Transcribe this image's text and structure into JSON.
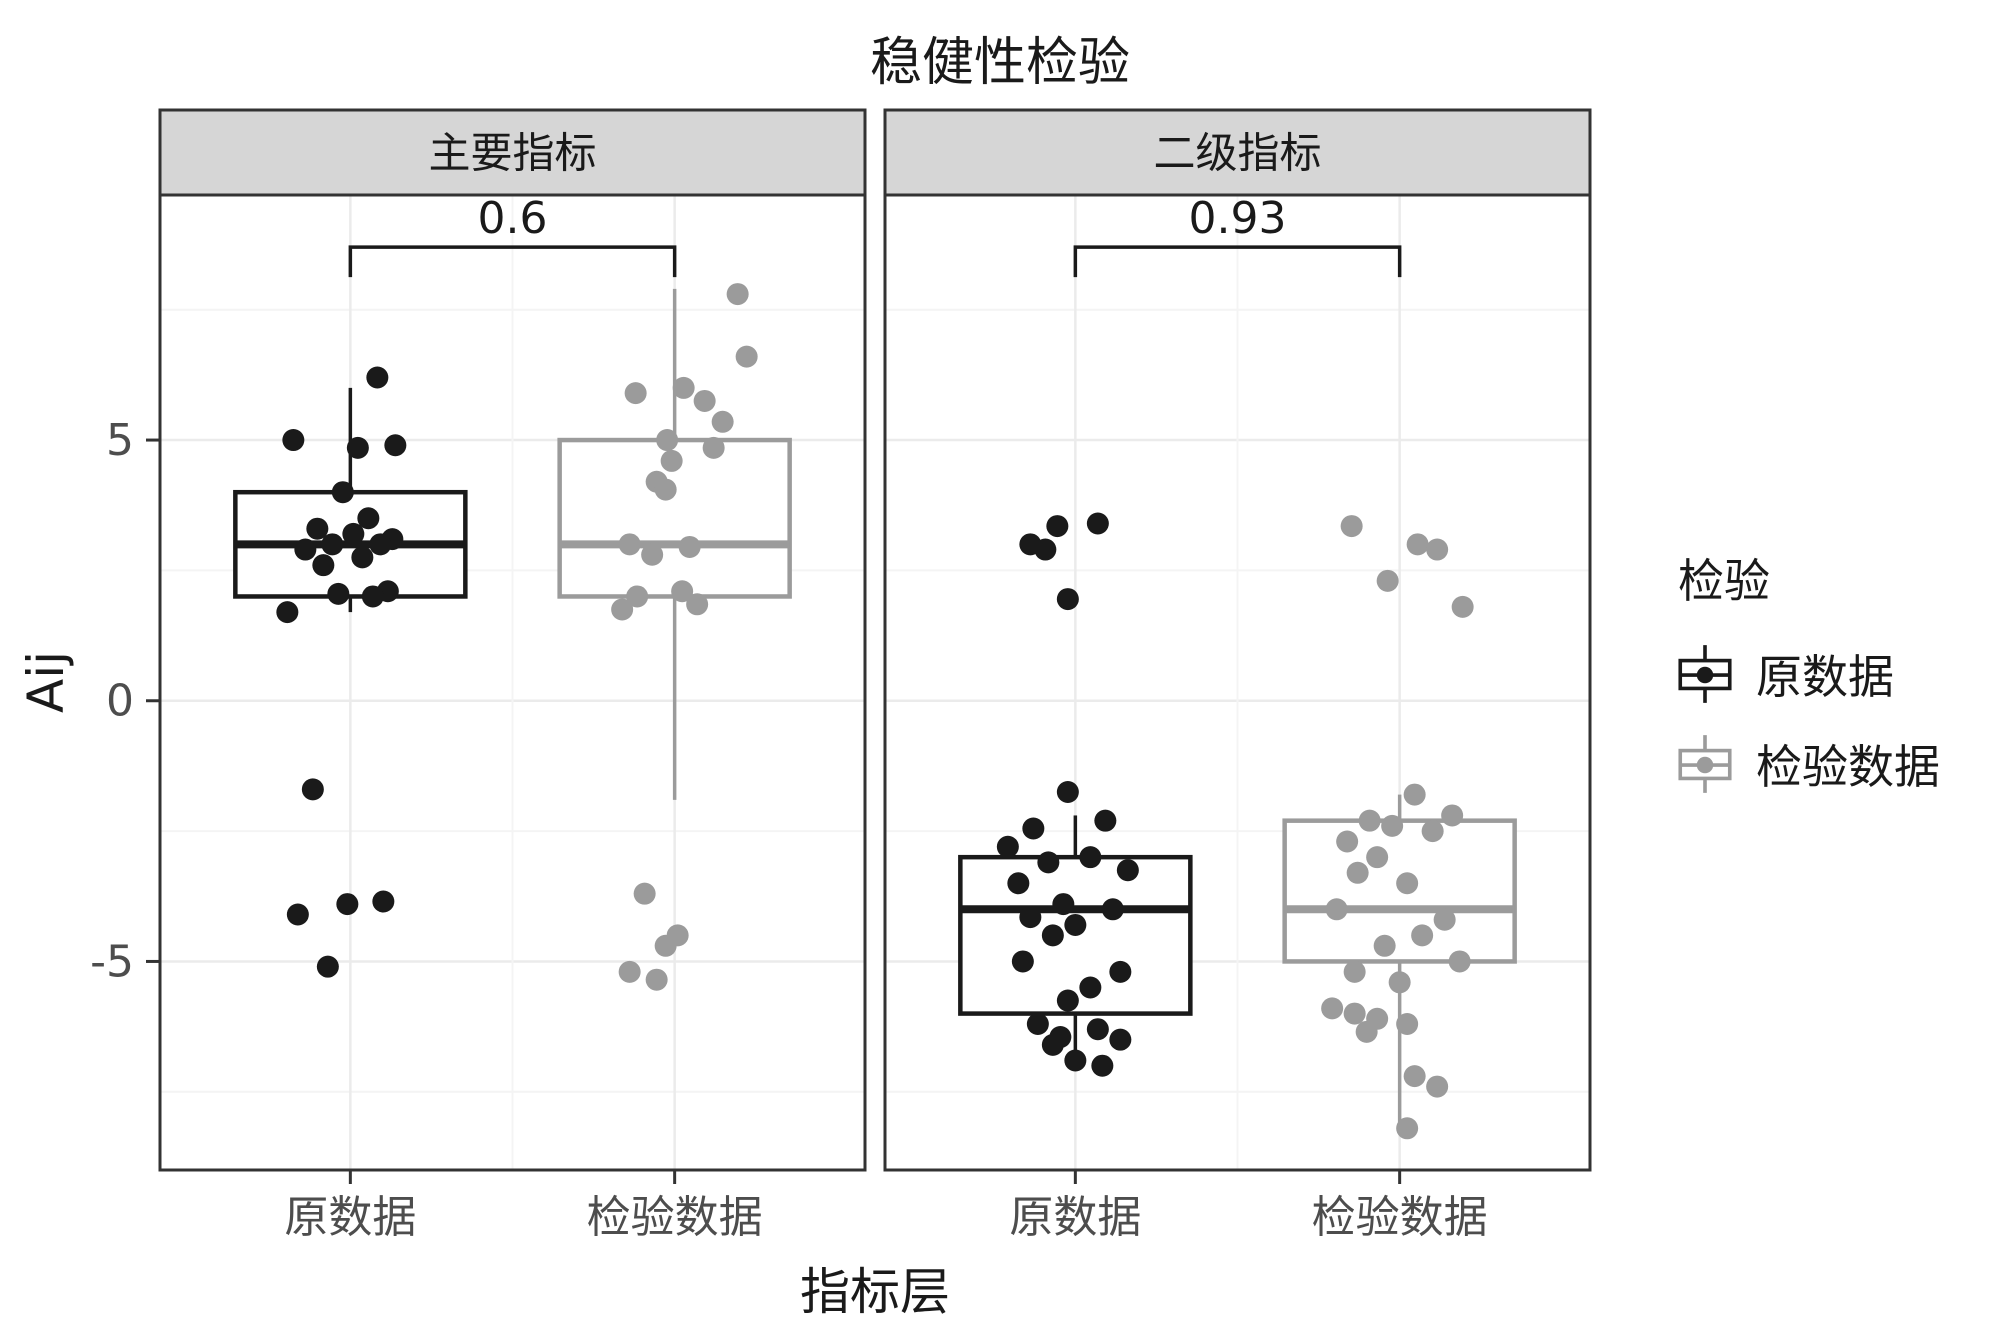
{
  "colors": {
    "black_series": "#1a1a1a",
    "gray_series": "#9b9b9b",
    "panel_border": "#333333",
    "strip_fill": "#d6d6d6",
    "grid_major": "#ebebeb",
    "grid_minor": "#f4f4f4",
    "tick_text": "#4d4d4d",
    "background": "#ffffff"
  },
  "legend": {
    "title": "检验",
    "items": [
      {
        "label": "原数据",
        "color": "#1a1a1a"
      },
      {
        "label": "检验数据",
        "color": "#9b9b9b"
      }
    ]
  },
  "chart_data": {
    "type": "boxplot",
    "overlay": "jitter-points",
    "title": "稳健性检验",
    "xlabel": "指标层",
    "ylabel": "Aij",
    "ylim": [
      -9,
      9.7
    ],
    "y_ticks": [
      5,
      0,
      -5
    ],
    "y_minor": [
      7.5,
      2.5,
      -2.5,
      -7.5
    ],
    "grid": true,
    "legend_position": "right",
    "facets": [
      {
        "label": "主要指标",
        "p_label": "0.6",
        "bracket_y": 8.7,
        "groups": [
          {
            "name": "原数据",
            "color": "#1a1a1a",
            "box": {
              "lo": 1.7,
              "q1": 2.0,
              "median": 3.0,
              "q3": 4.0,
              "hi": 6.0
            },
            "points": [
              [
                0.18,
                6.2
              ],
              [
                -0.38,
                5.0
              ],
              [
                0.3,
                4.9
              ],
              [
                0.05,
                4.85
              ],
              [
                -0.05,
                4.0
              ],
              [
                0.12,
                3.5
              ],
              [
                -0.22,
                3.3
              ],
              [
                0.02,
                3.2
              ],
              [
                0.28,
                3.1
              ],
              [
                -0.12,
                3.0
              ],
              [
                0.2,
                3.0
              ],
              [
                -0.3,
                2.9
              ],
              [
                0.08,
                2.75
              ],
              [
                -0.18,
                2.6
              ],
              [
                0.25,
                2.1
              ],
              [
                -0.08,
                2.05
              ],
              [
                0.15,
                2.0
              ],
              [
                -0.42,
                1.7
              ],
              [
                -0.25,
                -1.7
              ],
              [
                -0.35,
                -4.1
              ],
              [
                -0.02,
                -3.9
              ],
              [
                0.22,
                -3.85
              ],
              [
                -0.15,
                -5.1
              ]
            ]
          },
          {
            "name": "检验数据",
            "color": "#9b9b9b",
            "box": {
              "lo": -1.9,
              "q1": 2.0,
              "median": 3.0,
              "q3": 5.0,
              "hi": 7.9
            },
            "points": [
              [
                0.42,
                7.8
              ],
              [
                0.48,
                6.6
              ],
              [
                0.06,
                6.0
              ],
              [
                -0.26,
                5.9
              ],
              [
                0.2,
                5.75
              ],
              [
                0.32,
                5.35
              ],
              [
                -0.05,
                5.0
              ],
              [
                0.26,
                4.85
              ],
              [
                -0.02,
                4.6
              ],
              [
                -0.12,
                4.2
              ],
              [
                -0.06,
                4.05
              ],
              [
                -0.3,
                3.0
              ],
              [
                0.1,
                2.95
              ],
              [
                -0.15,
                2.8
              ],
              [
                0.05,
                2.1
              ],
              [
                -0.25,
                2.0
              ],
              [
                0.15,
                1.85
              ],
              [
                -0.35,
                1.75
              ],
              [
                -0.2,
                -3.7
              ],
              [
                0.02,
                -4.5
              ],
              [
                -0.06,
                -4.7
              ],
              [
                -0.3,
                -5.2
              ],
              [
                -0.12,
                -5.35
              ]
            ]
          }
        ]
      },
      {
        "label": "二级指标",
        "p_label": "0.93",
        "bracket_y": 8.7,
        "groups": [
          {
            "name": "原数据",
            "color": "#1a1a1a",
            "box": {
              "lo": -7.0,
              "q1": -6.0,
              "median": -4.0,
              "q3": -3.0,
              "hi": -2.2
            },
            "points": [
              [
                -0.12,
                3.35
              ],
              [
                0.15,
                3.4
              ],
              [
                -0.3,
                3.0
              ],
              [
                -0.2,
                2.9
              ],
              [
                -0.05,
                1.95
              ],
              [
                -0.05,
                -1.75
              ],
              [
                0.2,
                -2.3
              ],
              [
                -0.28,
                -2.45
              ],
              [
                -0.45,
                -2.8
              ],
              [
                0.1,
                -3.0
              ],
              [
                -0.18,
                -3.1
              ],
              [
                0.35,
                -3.25
              ],
              [
                -0.38,
                -3.5
              ],
              [
                -0.08,
                -3.9
              ],
              [
                0.25,
                -4.0
              ],
              [
                -0.3,
                -4.15
              ],
              [
                0.0,
                -4.3
              ],
              [
                -0.15,
                -4.5
              ],
              [
                -0.35,
                -5.0
              ],
              [
                0.3,
                -5.2
              ],
              [
                0.1,
                -5.5
              ],
              [
                -0.05,
                -5.75
              ],
              [
                -0.25,
                -6.2
              ],
              [
                0.15,
                -6.3
              ],
              [
                -0.1,
                -6.45
              ],
              [
                0.3,
                -6.5
              ],
              [
                -0.15,
                -6.6
              ],
              [
                0.0,
                -6.9
              ],
              [
                0.18,
                -7.0
              ]
            ]
          },
          {
            "name": "检验数据",
            "color": "#9b9b9b",
            "box": {
              "lo": -8.2,
              "q1": -5.0,
              "median": -4.0,
              "q3": -2.3,
              "hi": -1.8
            },
            "points": [
              [
                -0.32,
                3.35
              ],
              [
                0.12,
                3.0
              ],
              [
                0.25,
                2.9
              ],
              [
                -0.08,
                2.3
              ],
              [
                0.42,
                1.8
              ],
              [
                0.1,
                -1.8
              ],
              [
                0.35,
                -2.2
              ],
              [
                -0.2,
                -2.3
              ],
              [
                -0.05,
                -2.4
              ],
              [
                0.22,
                -2.5
              ],
              [
                -0.35,
                -2.7
              ],
              [
                -0.15,
                -3.0
              ],
              [
                -0.28,
                -3.3
              ],
              [
                0.05,
                -3.5
              ],
              [
                -0.42,
                -4.0
              ],
              [
                0.3,
                -4.2
              ],
              [
                0.15,
                -4.5
              ],
              [
                -0.1,
                -4.7
              ],
              [
                0.4,
                -5.0
              ],
              [
                -0.3,
                -5.2
              ],
              [
                0.0,
                -5.4
              ],
              [
                -0.45,
                -5.9
              ],
              [
                -0.3,
                -6.0
              ],
              [
                -0.15,
                -6.1
              ],
              [
                0.05,
                -6.2
              ],
              [
                -0.22,
                -6.35
              ],
              [
                0.1,
                -7.2
              ],
              [
                0.25,
                -7.4
              ],
              [
                0.05,
                -8.2
              ]
            ]
          }
        ]
      }
    ]
  }
}
